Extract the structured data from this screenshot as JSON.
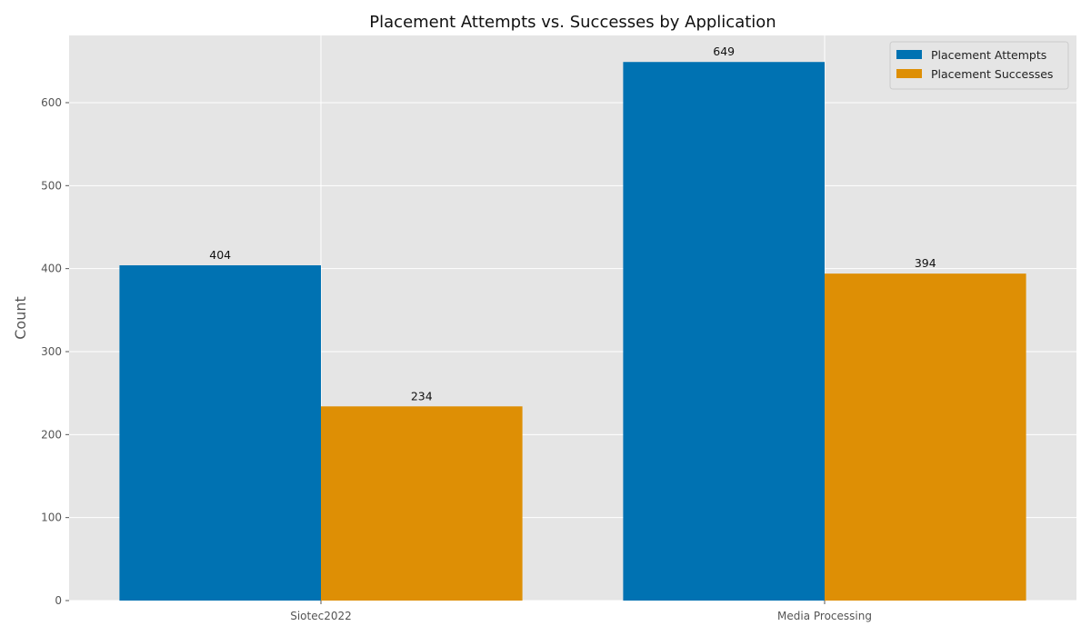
{
  "chart_data": {
    "type": "bar",
    "title": "Placement Attempts vs. Successes by Application",
    "xlabel": "",
    "ylabel": "Count",
    "categories": [
      "Siotec2022",
      "Media Processing"
    ],
    "series": [
      {
        "name": "Placement Attempts",
        "values": [
          404,
          649
        ],
        "color": "#0072b2"
      },
      {
        "name": "Placement Successes",
        "values": [
          234,
          394
        ],
        "color": "#de8f05"
      }
    ],
    "ylim": [
      0,
      681
    ],
    "yticks": [
      0,
      100,
      200,
      300,
      400,
      500,
      600
    ],
    "grid": true,
    "legend_position": "top-right",
    "background_color": "#e5e5e5",
    "grid_color": "#ffffff"
  }
}
